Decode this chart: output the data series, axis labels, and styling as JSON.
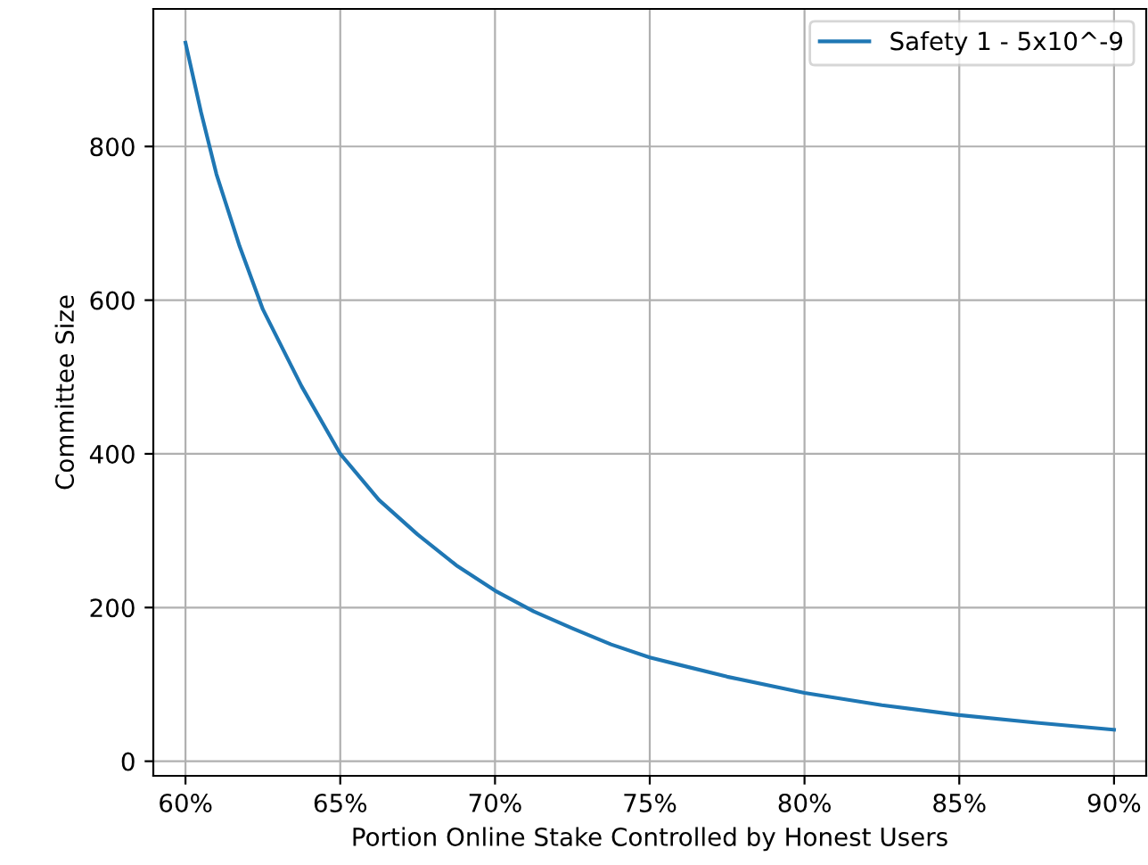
{
  "chart_data": {
    "type": "line",
    "xlabel": "Portion Online Stake Controlled by Honest Users",
    "ylabel": "Committee Size",
    "x": [
      0.6,
      0.605,
      0.61,
      0.6175,
      0.625,
      0.6375,
      0.65,
      0.6625,
      0.675,
      0.6875,
      0.7,
      0.7125,
      0.725,
      0.7375,
      0.75,
      0.775,
      0.8,
      0.825,
      0.85,
      0.875,
      0.9
    ],
    "series": [
      {
        "name": "Safety 1 - 5x10^-9",
        "color": "#1f77b4",
        "values": [
          935,
          845,
          764,
          670,
          588,
          488,
          400,
          340,
          295,
          255,
          222,
          195,
          173,
          152,
          135,
          110,
          89,
          73,
          60,
          50,
          41
        ]
      }
    ],
    "xlim": [
      0.5896,
      0.9104
    ],
    "ylim": [
      -19,
      979
    ],
    "xticks": [
      {
        "value": 0.6,
        "label": "60%"
      },
      {
        "value": 0.65,
        "label": "65%"
      },
      {
        "value": 0.7,
        "label": "70%"
      },
      {
        "value": 0.75,
        "label": "75%"
      },
      {
        "value": 0.8,
        "label": "80%"
      },
      {
        "value": 0.85,
        "label": "85%"
      },
      {
        "value": 0.9,
        "label": "90%"
      }
    ],
    "yticks": [
      0,
      200,
      400,
      600,
      800
    ],
    "grid": true,
    "legend": "top right",
    "marker": "none",
    "line_style": "solid"
  }
}
